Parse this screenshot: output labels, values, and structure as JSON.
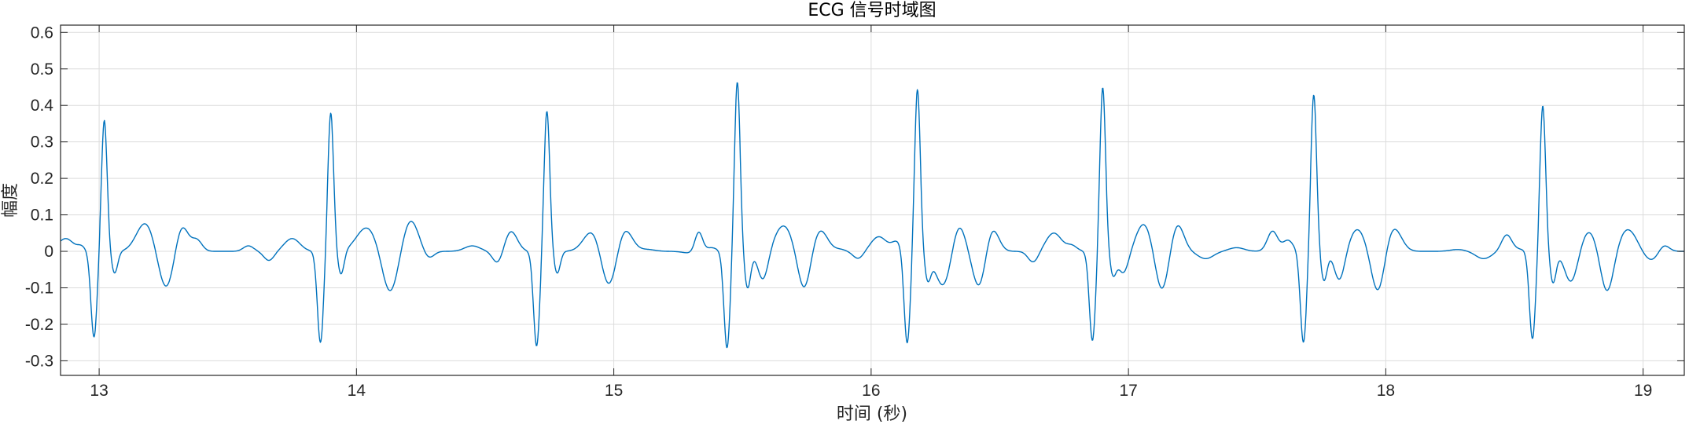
{
  "chart_data": {
    "type": "line",
    "title": "ECG 信号时域图",
    "xlabel": "时间 (秒)",
    "ylabel": "幅度",
    "xlim": [
      12.85,
      19.16
    ],
    "ylim": [
      -0.34,
      0.62
    ],
    "xticks": [
      13,
      14,
      15,
      16,
      17,
      18,
      19
    ],
    "xtick_labels": [
      "13",
      "14",
      "15",
      "16",
      "17",
      "18",
      "19"
    ],
    "yticks": [
      -0.3,
      -0.2,
      -0.1,
      0,
      0.1,
      0.2,
      0.3,
      0.4,
      0.5,
      0.6
    ],
    "ytick_labels": [
      "-0.3",
      "-0.2",
      "-0.1",
      "0",
      "0.1",
      "0.2",
      "0.3",
      "0.4",
      "0.5",
      "0.6"
    ],
    "grid": true,
    "series": [
      {
        "color": "#0072BD",
        "beats": [
          {
            "q": 12.98,
            "r": 13.02,
            "s": 13.06,
            "q_val": -0.235,
            "r_val": 0.36,
            "s_val": -0.06
          },
          {
            "q": 13.86,
            "r": 13.9,
            "s": 13.94,
            "q_val": -0.25,
            "r_val": 0.38,
            "s_val": -0.065
          },
          {
            "q": 14.7,
            "r": 14.74,
            "s": 14.78,
            "q_val": -0.26,
            "r_val": 0.385,
            "s_val": -0.06
          },
          {
            "q": 15.44,
            "r": 15.48,
            "s": 15.52,
            "q_val": -0.265,
            "r_val": 0.465,
            "s_val": -0.1
          },
          {
            "q": 16.14,
            "r": 16.18,
            "s": 16.22,
            "q_val": -0.255,
            "r_val": 0.445,
            "s_val": -0.07
          },
          {
            "q": 16.86,
            "r": 16.9,
            "s": 16.94,
            "q_val": -0.245,
            "r_val": 0.45,
            "s_val": -0.06
          },
          {
            "q": 17.68,
            "r": 17.72,
            "s": 17.76,
            "q_val": -0.25,
            "r_val": 0.43,
            "s_val": -0.08
          },
          {
            "q": 18.57,
            "r": 18.61,
            "s": 18.65,
            "q_val": -0.24,
            "r_val": 0.4,
            "s_val": -0.085
          }
        ],
        "waves": [
          {
            "t": 12.87,
            "v": 0.035,
            "w": 0.03
          },
          {
            "t": 12.93,
            "v": 0.012,
            "w": 0.015
          },
          {
            "t": 13.18,
            "v": 0.078,
            "w": 0.035
          },
          {
            "t": 13.26,
            "v": -0.105,
            "w": 0.03
          },
          {
            "t": 13.32,
            "v": 0.075,
            "w": 0.025
          },
          {
            "t": 13.38,
            "v": 0.03,
            "w": 0.02
          },
          {
            "t": 13.58,
            "v": 0.015,
            "w": 0.02
          },
          {
            "t": 13.66,
            "v": -0.025,
            "w": 0.02
          },
          {
            "t": 13.75,
            "v": 0.035,
            "w": 0.03
          },
          {
            "t": 14.04,
            "v": 0.065,
            "w": 0.04
          },
          {
            "t": 14.13,
            "v": -0.115,
            "w": 0.03
          },
          {
            "t": 14.21,
            "v": 0.085,
            "w": 0.03
          },
          {
            "t": 14.28,
            "v": -0.02,
            "w": 0.02
          },
          {
            "t": 14.45,
            "v": 0.015,
            "w": 0.03
          },
          {
            "t": 14.55,
            "v": -0.035,
            "w": 0.02
          },
          {
            "t": 14.6,
            "v": 0.055,
            "w": 0.025
          },
          {
            "t": 14.92,
            "v": 0.06,
            "w": 0.035
          },
          {
            "t": 14.98,
            "v": -0.11,
            "w": 0.03
          },
          {
            "t": 15.04,
            "v": 0.065,
            "w": 0.03
          },
          {
            "t": 15.13,
            "v": 0.005,
            "w": 0.03
          },
          {
            "t": 15.3,
            "v": -0.005,
            "w": 0.03
          },
          {
            "t": 15.33,
            "v": 0.055,
            "w": 0.015
          },
          {
            "t": 15.38,
            "v": 0.01,
            "w": 0.02
          },
          {
            "t": 15.58,
            "v": -0.08,
            "w": 0.02
          },
          {
            "t": 15.66,
            "v": 0.07,
            "w": 0.035
          },
          {
            "t": 15.74,
            "v": -0.11,
            "w": 0.025
          },
          {
            "t": 15.8,
            "v": 0.06,
            "w": 0.03
          },
          {
            "t": 15.88,
            "v": 0.005,
            "w": 0.02
          },
          {
            "t": 15.95,
            "v": -0.02,
            "w": 0.02
          },
          {
            "t": 16.03,
            "v": 0.04,
            "w": 0.03
          },
          {
            "t": 16.1,
            "v": 0.025,
            "w": 0.02
          },
          {
            "t": 16.28,
            "v": -0.095,
            "w": 0.03
          },
          {
            "t": 16.34,
            "v": 0.075,
            "w": 0.025
          },
          {
            "t": 16.42,
            "v": -0.1,
            "w": 0.025
          },
          {
            "t": 16.47,
            "v": 0.065,
            "w": 0.025
          },
          {
            "t": 16.56,
            "v": 0.0,
            "w": 0.02
          },
          {
            "t": 16.63,
            "v": -0.03,
            "w": 0.02
          },
          {
            "t": 16.71,
            "v": 0.05,
            "w": 0.03
          },
          {
            "t": 16.78,
            "v": 0.015,
            "w": 0.02
          },
          {
            "t": 16.98,
            "v": -0.06,
            "w": 0.02
          },
          {
            "t": 17.06,
            "v": 0.075,
            "w": 0.03
          },
          {
            "t": 17.13,
            "v": -0.11,
            "w": 0.025
          },
          {
            "t": 17.19,
            "v": 0.075,
            "w": 0.025
          },
          {
            "t": 17.3,
            "v": -0.02,
            "w": 0.03
          },
          {
            "t": 17.42,
            "v": 0.01,
            "w": 0.03
          },
          {
            "t": 17.56,
            "v": 0.055,
            "w": 0.02
          },
          {
            "t": 17.62,
            "v": 0.03,
            "w": 0.02
          },
          {
            "t": 17.82,
            "v": -0.08,
            "w": 0.02
          },
          {
            "t": 17.89,
            "v": 0.06,
            "w": 0.03
          },
          {
            "t": 17.97,
            "v": -0.115,
            "w": 0.025
          },
          {
            "t": 18.03,
            "v": 0.065,
            "w": 0.03
          },
          {
            "t": 18.12,
            "v": 0.0,
            "w": 0.03
          },
          {
            "t": 18.28,
            "v": 0.005,
            "w": 0.03
          },
          {
            "t": 18.38,
            "v": -0.02,
            "w": 0.03
          },
          {
            "t": 18.47,
            "v": 0.045,
            "w": 0.02
          },
          {
            "t": 18.52,
            "v": 0.005,
            "w": 0.02
          },
          {
            "t": 18.72,
            "v": -0.085,
            "w": 0.025
          },
          {
            "t": 18.79,
            "v": 0.055,
            "w": 0.03
          },
          {
            "t": 18.86,
            "v": -0.115,
            "w": 0.025
          },
          {
            "t": 18.94,
            "v": 0.06,
            "w": 0.035
          },
          {
            "t": 19.03,
            "v": -0.025,
            "w": 0.03
          },
          {
            "t": 19.08,
            "v": 0.02,
            "w": 0.02
          }
        ]
      }
    ]
  }
}
